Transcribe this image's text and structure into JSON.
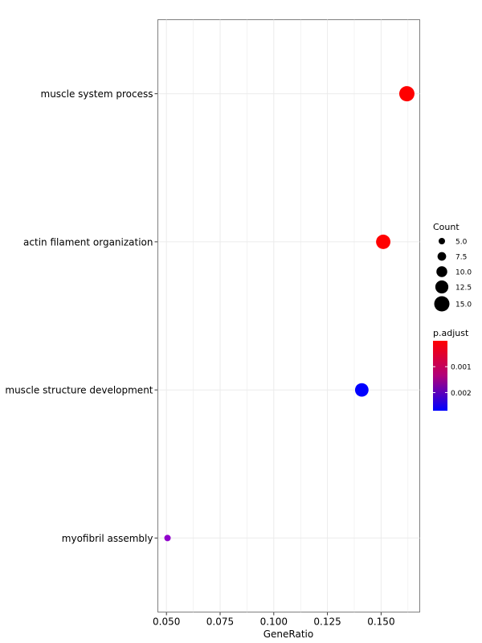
{
  "chart_data": {
    "type": "scatter",
    "xlabel": "GeneRatio",
    "ylabel": "",
    "title": "",
    "xlim": [
      0.046,
      0.168
    ],
    "x_ticks": [
      0.05,
      0.075,
      0.1,
      0.125,
      0.15
    ],
    "x_tick_labels": [
      "0.050",
      "0.075",
      "0.100",
      "0.125",
      "0.150"
    ],
    "grid": true,
    "categories": [
      "muscle system process",
      "actin filament organization",
      "muscle structure development",
      "myofibril assembly"
    ],
    "points": [
      {
        "term": "muscle system process",
        "x": 0.162,
        "count": 15,
        "p_adjust": 0.0001,
        "color": "#ff0000"
      },
      {
        "term": "actin filament organization",
        "x": 0.151,
        "count": 14,
        "p_adjust": 0.0001,
        "color": "#ff0000"
      },
      {
        "term": "muscle structure development",
        "x": 0.141,
        "count": 13,
        "p_adjust": 0.0027,
        "color": "#0000ff"
      },
      {
        "term": "myofibril assembly",
        "x": 0.0505,
        "count": 5,
        "p_adjust": 0.0018,
        "color": "#9000cc"
      }
    ],
    "size_legend": {
      "title": "Count",
      "entries": [
        {
          "label": "5.0",
          "value": 5
        },
        {
          "label": "7.5",
          "value": 7.5
        },
        {
          "label": "10.0",
          "value": 10
        },
        {
          "label": "12.5",
          "value": 12.5
        },
        {
          "label": "15.0",
          "value": 15
        }
      ]
    },
    "color_legend": {
      "title": "p.adjust",
      "low_color": "#ff0000",
      "high_color": "#0000ff",
      "range": [
        0.0,
        0.0027
      ],
      "ticks": [
        {
          "label": "0.001",
          "value": 0.001
        },
        {
          "label": "0.002",
          "value": 0.002
        }
      ]
    },
    "legend_position": "right"
  }
}
